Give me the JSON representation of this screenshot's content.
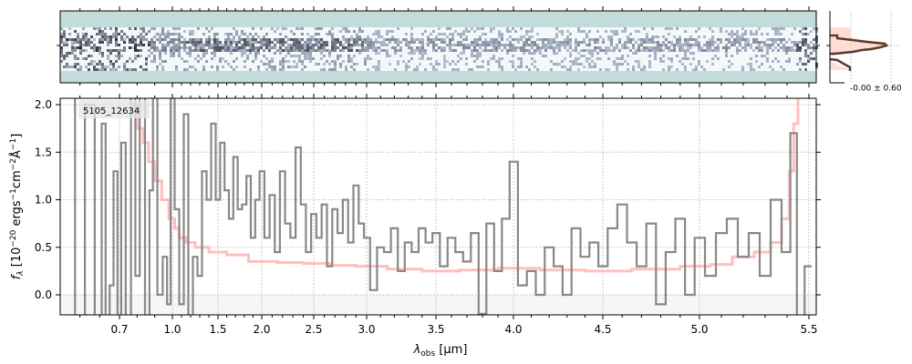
{
  "chart_data": {
    "type": "line",
    "object_label": "5105_12634",
    "xlabel_main": "λ",
    "xlabel_sub": "obs",
    "xlabel_unit": " [μm]",
    "ylabel": "f_λ [10^-20 erg s^-1 cm^-2 Å^-1]",
    "ylabel_parts": {
      "f": "f",
      "lam": "λ",
      "a": " [10",
      "e1": "−20",
      "b": " ergs",
      "e2": "−1",
      "c": "cm",
      "e3": "−2",
      "d": "Å",
      "e4": "−1",
      "e": "]"
    },
    "ylim": [
      -0.21,
      2.07
    ],
    "xlim": [
      0.4,
      5.53
    ],
    "grid": true,
    "x_ticks": [
      "0.7",
      "1.0",
      "1.5",
      "2.0",
      "2.5",
      "3.0",
      "3.5",
      "4.0",
      "4.5",
      "5.0",
      "5.5"
    ],
    "y_ticks": [
      "0.0",
      "0.5",
      "1.0",
      "1.5",
      "2.0"
    ],
    "series": [
      {
        "name": "flux",
        "color": "#888888",
        "x": [
          0.45,
          0.5,
          0.55,
          0.6,
          0.62,
          0.64,
          0.66,
          0.68,
          0.7,
          0.72,
          0.75,
          0.78,
          0.8,
          0.83,
          0.86,
          0.88,
          0.9,
          0.93,
          0.96,
          0.98,
          1.0,
          1.05,
          1.1,
          1.15,
          1.2,
          1.25,
          1.3,
          1.35,
          1.4,
          1.45,
          1.5,
          1.55,
          1.6,
          1.65,
          1.7,
          1.75,
          1.8,
          1.85,
          1.9,
          1.95,
          2.0,
          2.05,
          2.1,
          2.15,
          2.2,
          2.25,
          2.3,
          2.35,
          2.4,
          2.45,
          2.5,
          2.55,
          2.6,
          2.65,
          2.7,
          2.75,
          2.8,
          2.85,
          2.9,
          2.95,
          3.0,
          3.05,
          3.1,
          3.15,
          3.2,
          3.25,
          3.3,
          3.35,
          3.4,
          3.45,
          3.5,
          3.55,
          3.6,
          3.65,
          3.7,
          3.75,
          3.8,
          3.85,
          3.9,
          3.95,
          4.0,
          4.05,
          4.1,
          4.15,
          4.2,
          4.25,
          4.3,
          4.35,
          4.4,
          4.45,
          4.5,
          4.55,
          4.6,
          4.65,
          4.7,
          4.75,
          4.8,
          4.85,
          4.9,
          4.95,
          5.0,
          5.05,
          5.1,
          5.15,
          5.2,
          5.25,
          5.3,
          5.35,
          5.4,
          5.43,
          5.46,
          5.5
        ],
        "y": [
          3,
          -1,
          2,
          -0.5,
          1.8,
          -0.3,
          0.1,
          1.3,
          -0.3,
          1.6,
          -0.3,
          2.5,
          0.2,
          3,
          -0.5,
          1.1,
          2.8,
          0.0,
          0.4,
          -0.1,
          2.5,
          0.9,
          -0.1,
          1.9,
          -0.3,
          0.4,
          0.2,
          1.3,
          1.0,
          1.8,
          1.0,
          1.6,
          1.1,
          0.8,
          1.45,
          0.9,
          0.95,
          1.25,
          0.6,
          1.0,
          1.3,
          0.6,
          1.05,
          0.45,
          1.3,
          0.75,
          0.6,
          1.55,
          0.95,
          0.45,
          0.85,
          0.6,
          0.95,
          0.3,
          0.9,
          0.65,
          1.0,
          0.55,
          1.15,
          0.75,
          0.6,
          0.05,
          0.5,
          0.45,
          0.7,
          0.25,
          0.55,
          0.45,
          0.7,
          0.55,
          0.65,
          0.3,
          0.6,
          0.45,
          0.35,
          0.65,
          -0.2,
          0.75,
          0.25,
          0.8,
          1.4,
          0.1,
          0.25,
          0.0,
          0.5,
          0.3,
          0.0,
          0.7,
          0.4,
          0.55,
          0.3,
          0.7,
          0.95,
          0.55,
          0.3,
          0.75,
          -0.1,
          0.45,
          0.8,
          0.0,
          0.6,
          0.2,
          0.65,
          0.8,
          0.4,
          0.65,
          0.2,
          1.0,
          0.45,
          1.7,
          -0.3,
          0.3
        ]
      },
      {
        "name": "uncertainty",
        "color": "#ffb4b4",
        "x": [
          0.78,
          0.82,
          0.85,
          0.88,
          0.92,
          0.96,
          1.0,
          1.05,
          1.1,
          1.2,
          1.3,
          1.5,
          1.7,
          2.0,
          2.3,
          2.5,
          2.8,
          3.0,
          3.3,
          3.5,
          3.8,
          4.0,
          4.3,
          4.5,
          4.8,
          5.0,
          5.1,
          5.2,
          5.3,
          5.35,
          5.4,
          5.42,
          5.44,
          5.46
        ],
        "y": [
          2.0,
          1.75,
          1.6,
          1.4,
          1.2,
          1.0,
          0.8,
          0.7,
          0.6,
          0.55,
          0.5,
          0.45,
          0.42,
          0.35,
          0.34,
          0.33,
          0.31,
          0.3,
          0.27,
          0.25,
          0.26,
          0.28,
          0.26,
          0.25,
          0.27,
          0.3,
          0.32,
          0.4,
          0.45,
          0.55,
          0.8,
          1.3,
          1.8,
          2.1
        ]
      }
    ],
    "histogram": {
      "label": "-0.00 ± 0.60",
      "fill_color": "#ffd4c8",
      "line_color": "#5a3a30"
    }
  }
}
